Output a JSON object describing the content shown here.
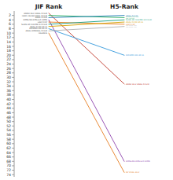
{
  "chart_data": {
    "type": "slope",
    "categories": [
      "JIF Rank",
      "H5-Rank"
    ],
    "series": [
      {
        "name": "ANNU REV ANAL CHEM",
        "color": "#c0392b",
        "values": [
          1,
          33
        ],
        "labels": [
          "ANNU REV ANAL CHEM",
          "ANNU REV ANAL CHEM"
        ]
      },
      {
        "name": "TRAC-TREND ANAL CHEM",
        "color": "#27ae60",
        "values": [
          2,
          3
        ],
        "labels": [
          "TRAC-TREND ANAL CHEM",
          "TRAC-TREND ANAL CHEM\nANAL CHIM ACTA"
        ]
      },
      {
        "name": "ANAL CHEM",
        "color": "#2980b9",
        "values": [
          3,
          2
        ],
        "labels": [
          "ANAL CHEM",
          "ANAL CHEM"
        ]
      },
      {
        "name": "BIOSENS BIOELECTRON",
        "color": "#8e44ad",
        "values": [
          4,
          68
        ],
        "labels": [
          "BIOSENS BIOELECTRON",
          "BIOSENS BIOELECTRON"
        ]
      },
      {
        "name": "LAB CHIP",
        "color": "#e67e22",
        "values": [
          5,
          6
        ],
        "labels": [
          "LAB CHIP",
          "LAB CHIP"
        ]
      },
      {
        "name": "SENS ACTUATOR B-CHEM",
        "color": "#16a085",
        "values": [
          6,
          4
        ],
        "labels": [
          "SENS ACTUATOR B-CHEM",
          "SENS ACTUATOR B-CHEM"
        ]
      },
      {
        "name": "ANAL CHIM ACTA",
        "color": "#d4a000",
        "values": [
          7,
          5
        ],
        "labels": [
          "ANAL CHIM ACTA",
          "ANAL CHIM ACTA"
        ]
      },
      {
        "name": "MICROCHIM ACTA",
        "color": "#3498db",
        "values": [
          8,
          20
        ],
        "labels": [
          "MICROCHIM ACTA",
          "MICROCHIM ACTA"
        ]
      },
      {
        "name": "ANAL BIOANAL CHEM",
        "color": "#b0b0b0",
        "values": [
          9,
          7
        ],
        "labels": [
          "ANAL BIOANAL CHEM",
          "ANAL BIOANAL CHEM\nANAL BIOANAL CHEM"
        ]
      },
      {
        "name": "TALANTA",
        "color": "#e67e22",
        "values": [
          10,
          73
        ],
        "labels": [
          "TALANTA",
          "NP PURE REV"
        ]
      }
    ],
    "ylim": [
      75,
      0
    ],
    "yticks": [
      2,
      4,
      6,
      8,
      10,
      12,
      14,
      16,
      18,
      20,
      22,
      24,
      26,
      28,
      30,
      32,
      34,
      36,
      38,
      40,
      42,
      44,
      46,
      48,
      50,
      52,
      54,
      56,
      58,
      60,
      62,
      64,
      66,
      68,
      70,
      72,
      74
    ],
    "grid": false
  }
}
